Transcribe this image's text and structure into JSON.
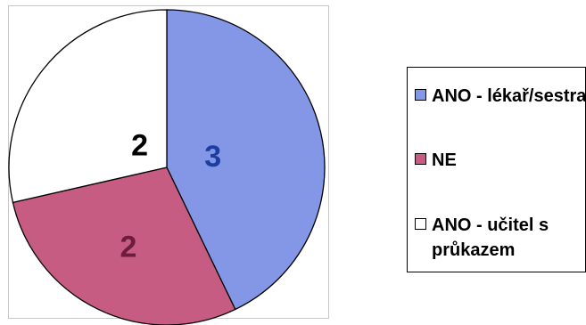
{
  "chart_data": {
    "type": "pie",
    "categories": [
      "ANO - lékař/sestra",
      "NE",
      "ANO - učitel s průkazem"
    ],
    "values": [
      3,
      2,
      2
    ],
    "colors": [
      "#8497e6",
      "#c75c83",
      "#ffffff"
    ],
    "label_colors": [
      "#1d3da0",
      "#6b1d3c",
      "#000000"
    ],
    "data_labels": [
      "3",
      "2",
      "2"
    ],
    "legend_placement": "right"
  }
}
